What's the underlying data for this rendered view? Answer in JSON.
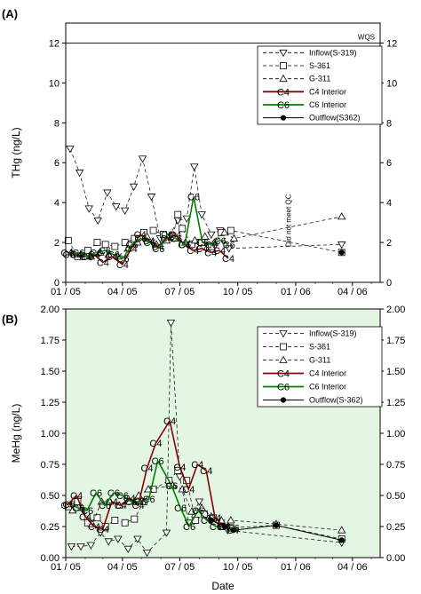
{
  "colors": {
    "panel_a_bg": "#ffffff",
    "panel_b_bg": "#e3f5e3",
    "inflow": "#000000",
    "s361": "#000000",
    "g311": "#000000",
    "c4": "#8b0000",
    "c6": "#008000",
    "outflow": "#000000"
  },
  "chart_data": [
    {
      "type": "line",
      "panel_label": "(A)",
      "ylabel": "THg (ng/L)",
      "xlabel": "",
      "x_axis": "date",
      "xlim": [
        "2005-01-01",
        "2006-05-15"
      ],
      "ylim": [
        0,
        13
      ],
      "yticks": [
        0,
        2,
        4,
        6,
        8,
        10,
        12
      ],
      "xtick_labels": [
        "01 / 05",
        "04 / 05",
        "07 / 05",
        "10 / 05",
        "01 / 06",
        "04 / 06"
      ],
      "grid": false,
      "legend_position": "top-right",
      "reference_line": {
        "y": 12,
        "label": "WQS"
      },
      "annotations": [
        {
          "text": "Did not meet QC",
          "x": "2005-12-24",
          "y": 3.1,
          "rotation": -90
        }
      ],
      "series": [
        {
          "name": "Inflow(S-319)",
          "marker": "triangle-down",
          "style": "dashed",
          "points": [
            [
              "2005-01-08",
              6.7
            ],
            [
              "2005-01-23",
              5.5
            ],
            [
              "2005-02-07",
              3.7
            ],
            [
              "2005-02-21",
              3.1
            ],
            [
              "2005-03-08",
              4.5
            ],
            [
              "2005-03-22",
              3.8
            ],
            [
              "2005-04-05",
              3.6
            ],
            [
              "2005-04-19",
              4.8
            ],
            [
              "2005-05-03",
              6.2
            ],
            [
              "2005-05-17",
              4.3
            ],
            [
              "2005-05-31",
              2.2
            ],
            [
              "2005-06-14",
              2.3
            ],
            [
              "2005-06-28",
              3.1
            ],
            [
              "2005-07-12",
              3.2
            ],
            [
              "2005-07-24",
              5.8
            ],
            [
              "2005-08-05",
              3.4
            ],
            [
              "2005-08-20",
              2.4
            ],
            [
              "2005-09-03",
              2.6
            ],
            [
              "2005-09-17",
              1.7
            ],
            [
              "2006-03-15",
              1.9
            ]
          ]
        },
        {
          "name": "S-361",
          "marker": "square-open",
          "style": "dashed",
          "points": [
            [
              "2005-01-05",
              2.1
            ],
            [
              "2005-01-20",
              1.3
            ],
            [
              "2005-02-05",
              1.6
            ],
            [
              "2005-02-20",
              2.0
            ],
            [
              "2005-03-05",
              1.9
            ],
            [
              "2005-03-20",
              1.8
            ],
            [
              "2005-04-05",
              2.0
            ],
            [
              "2005-04-20",
              2.2
            ],
            [
              "2005-05-05",
              2.5
            ],
            [
              "2005-05-20",
              2.6
            ],
            [
              "2005-06-05",
              2.4
            ],
            [
              "2005-06-20",
              2.3
            ],
            [
              "2005-06-28",
              3.4
            ],
            [
              "2005-07-05",
              2.7
            ],
            [
              "2005-07-20",
              1.9
            ],
            [
              "2005-08-05",
              2.0
            ],
            [
              "2005-08-20",
              1.8
            ],
            [
              "2005-09-05",
              2.5
            ],
            [
              "2005-09-20",
              2.6
            ],
            [
              "2006-03-15",
              1.5
            ]
          ]
        },
        {
          "name": "G-311",
          "marker": "triangle-up",
          "style": "dashed",
          "points": [
            [
              "2005-01-10",
              1.5
            ],
            [
              "2005-01-25",
              1.4
            ],
            [
              "2005-02-10",
              1.3
            ],
            [
              "2005-02-25",
              1.5
            ],
            [
              "2005-03-10",
              1.4
            ],
            [
              "2005-03-25",
              1.3
            ],
            [
              "2005-04-10",
              1.7
            ],
            [
              "2005-04-25",
              2.0
            ],
            [
              "2005-05-10",
              2.3
            ],
            [
              "2005-05-25",
              1.9
            ],
            [
              "2005-06-10",
              2.1
            ],
            [
              "2005-06-25",
              2.2
            ],
            [
              "2005-07-10",
              2.0
            ],
            [
              "2005-07-25",
              2.1
            ],
            [
              "2005-08-10",
              2.3
            ],
            [
              "2005-08-25",
              2.0
            ],
            [
              "2005-09-10",
              2.5
            ],
            [
              "2005-09-25",
              2.2
            ],
            [
              "2006-03-15",
              3.3
            ]
          ]
        },
        {
          "name": "C4 Interior",
          "marker": "label",
          "marker_text": "C4",
          "style": "solid",
          "points": [
            [
              "2005-01-03",
              1.5
            ],
            [
              "2005-01-18",
              1.4
            ],
            [
              "2005-02-01",
              1.3
            ],
            [
              "2005-02-15",
              1.4
            ],
            [
              "2005-03-01",
              1.0
            ],
            [
              "2005-03-15",
              1.3
            ],
            [
              "2005-04-01",
              0.9
            ],
            [
              "2005-04-15",
              1.7
            ],
            [
              "2005-04-29",
              2.4
            ],
            [
              "2005-05-13",
              2.1
            ],
            [
              "2005-05-27",
              1.8
            ],
            [
              "2005-06-10",
              2.2
            ],
            [
              "2005-06-24",
              2.4
            ],
            [
              "2005-07-08",
              1.9
            ],
            [
              "2005-07-22",
              1.6
            ],
            [
              "2005-08-05",
              1.7
            ],
            [
              "2005-08-19",
              1.5
            ],
            [
              "2005-09-02",
              1.6
            ],
            [
              "2005-09-16",
              1.2
            ]
          ]
        },
        {
          "name": "C6 Interior",
          "marker": "label",
          "marker_text": "C6",
          "style": "solid",
          "points": [
            [
              "2005-01-06",
              1.4
            ],
            [
              "2005-01-21",
              1.5
            ],
            [
              "2005-02-04",
              1.3
            ],
            [
              "2005-02-18",
              1.5
            ],
            [
              "2005-03-04",
              1.6
            ],
            [
              "2005-03-18",
              1.4
            ],
            [
              "2005-04-02",
              1.2
            ],
            [
              "2005-04-16",
              1.9
            ],
            [
              "2005-04-30",
              2.2
            ],
            [
              "2005-05-14",
              2.0
            ],
            [
              "2005-05-28",
              1.7
            ],
            [
              "2005-06-11",
              2.4
            ],
            [
              "2005-06-25",
              2.2
            ],
            [
              "2005-07-09",
              1.9
            ],
            [
              "2005-07-23",
              4.3
            ],
            [
              "2005-08-06",
              2.0
            ],
            [
              "2005-08-20",
              1.9
            ],
            [
              "2005-09-03",
              2.1
            ],
            [
              "2005-09-17",
              1.9
            ]
          ]
        },
        {
          "name": "Outflow(S362)",
          "marker": "dot",
          "style": "solid",
          "points": [
            [
              "2006-03-15",
              1.5
            ]
          ]
        }
      ]
    },
    {
      "type": "line",
      "panel_label": "(B)",
      "ylabel": "MeHg (ng/L)",
      "xlabel": "Date",
      "x_axis": "date",
      "xlim": [
        "2005-01-01",
        "2006-05-15"
      ],
      "ylim": [
        0,
        2.0
      ],
      "yticks": [
        0.0,
        0.25,
        0.5,
        0.75,
        1.0,
        1.25,
        1.5,
        1.75,
        2.0
      ],
      "yticklabels": [
        "0.00",
        "0.25",
        "0.50",
        "0.75",
        "1.00",
        "1.25",
        "1.50",
        "1.75",
        "2.00"
      ],
      "xtick_labels": [
        "01 / 05",
        "04 / 05",
        "07 / 05",
        "10 / 05",
        "01 / 06",
        "04 / 06"
      ],
      "grid": false,
      "legend_position": "top-right",
      "series": [
        {
          "name": "Inflow(S-319)",
          "marker": "triangle-down",
          "style": "dashed",
          "points": [
            [
              "2005-01-10",
              0.09
            ],
            [
              "2005-01-25",
              0.09
            ],
            [
              "2005-02-10",
              0.1
            ],
            [
              "2005-02-25",
              0.2
            ],
            [
              "2005-03-10",
              0.13
            ],
            [
              "2005-03-25",
              0.15
            ],
            [
              "2005-04-10",
              0.07
            ],
            [
              "2005-04-25",
              0.15
            ],
            [
              "2005-05-10",
              0.04
            ],
            [
              "2005-06-10",
              0.2
            ],
            [
              "2005-06-17",
              1.89
            ],
            [
              "2005-07-01",
              0.65
            ],
            [
              "2005-07-15",
              0.28
            ],
            [
              "2005-08-01",
              0.45
            ],
            [
              "2005-08-15",
              0.32
            ],
            [
              "2005-09-01",
              0.28
            ],
            [
              "2005-09-15",
              0.22
            ],
            [
              "2006-03-15",
              0.12
            ]
          ]
        },
        {
          "name": "S-361",
          "marker": "square-open",
          "style": "dashed",
          "points": [
            [
              "2005-01-05",
              0.41
            ],
            [
              "2005-01-20",
              0.45
            ],
            [
              "2005-02-05",
              0.28
            ],
            [
              "2005-02-20",
              0.32
            ],
            [
              "2005-03-05",
              0.25
            ],
            [
              "2005-03-20",
              0.3
            ],
            [
              "2005-04-05",
              0.28
            ],
            [
              "2005-04-20",
              0.31
            ],
            [
              "2005-05-05",
              0.45
            ],
            [
              "2005-05-20",
              0.55
            ],
            [
              "2005-06-14",
              0.62
            ],
            [
              "2005-06-28",
              0.7
            ],
            [
              "2005-07-12",
              0.62
            ],
            [
              "2005-07-26",
              0.3
            ],
            [
              "2005-08-09",
              0.35
            ],
            [
              "2005-08-23",
              0.32
            ],
            [
              "2005-09-06",
              0.25
            ],
            [
              "2005-09-20",
              0.24
            ],
            [
              "2005-12-01",
              0.26
            ],
            [
              "2006-03-15",
              0.15
            ]
          ]
        },
        {
          "name": "G-311",
          "marker": "triangle-up",
          "style": "dashed",
          "points": [
            [
              "2005-01-12",
              0.38
            ],
            [
              "2005-01-27",
              0.4
            ],
            [
              "2005-02-12",
              0.27
            ],
            [
              "2005-02-27",
              0.45
            ],
            [
              "2005-03-12",
              0.45
            ],
            [
              "2005-03-27",
              0.42
            ],
            [
              "2005-04-12",
              0.45
            ],
            [
              "2005-04-27",
              0.5
            ],
            [
              "2005-05-12",
              0.55
            ],
            [
              "2005-06-20",
              0.58
            ],
            [
              "2005-07-05",
              0.55
            ],
            [
              "2005-07-20",
              0.37
            ],
            [
              "2005-08-05",
              0.4
            ],
            [
              "2005-08-20",
              0.33
            ],
            [
              "2005-09-05",
              0.3
            ],
            [
              "2005-09-20",
              0.3
            ],
            [
              "2005-12-01",
              0.27
            ],
            [
              "2006-03-15",
              0.22
            ]
          ]
        },
        {
          "name": "C4 Interior",
          "marker": "label",
          "marker_text": "C4",
          "style": "solid",
          "points": [
            [
              "2005-01-03",
              0.42
            ],
            [
              "2005-01-18",
              0.5
            ],
            [
              "2005-02-01",
              0.33
            ],
            [
              "2005-02-15",
              0.25
            ],
            [
              "2005-03-01",
              0.23
            ],
            [
              "2005-03-15",
              0.45
            ],
            [
              "2005-03-29",
              0.42
            ],
            [
              "2005-04-12",
              0.48
            ],
            [
              "2005-04-26",
              0.42
            ],
            [
              "2005-05-10",
              0.72
            ],
            [
              "2005-05-24",
              0.92
            ],
            [
              "2005-06-15",
              1.1
            ],
            [
              "2005-07-01",
              0.73
            ],
            [
              "2005-07-15",
              0.55
            ],
            [
              "2005-07-29",
              0.75
            ],
            [
              "2005-08-12",
              0.7
            ],
            [
              "2005-08-26",
              0.32
            ],
            [
              "2005-09-09",
              0.25
            ],
            [
              "2005-09-23",
              0.22
            ]
          ]
        },
        {
          "name": "C6 Interior",
          "marker": "label",
          "marker_text": "C6",
          "style": "solid",
          "points": [
            [
              "2005-01-06",
              0.43
            ],
            [
              "2005-01-21",
              0.4
            ],
            [
              "2005-02-04",
              0.38
            ],
            [
              "2005-02-18",
              0.52
            ],
            [
              "2005-03-04",
              0.42
            ],
            [
              "2005-03-18",
              0.52
            ],
            [
              "2005-04-01",
              0.5
            ],
            [
              "2005-04-15",
              0.45
            ],
            [
              "2005-04-29",
              0.45
            ],
            [
              "2005-05-13",
              0.47
            ],
            [
              "2005-05-27",
              0.78
            ],
            [
              "2005-06-18",
              0.58
            ],
            [
              "2005-07-02",
              0.4
            ],
            [
              "2005-07-16",
              0.25
            ],
            [
              "2005-07-30",
              0.38
            ],
            [
              "2005-08-13",
              0.3
            ],
            [
              "2005-08-27",
              0.25
            ],
            [
              "2005-09-10",
              0.25
            ],
            [
              "2005-09-24",
              0.24
            ]
          ]
        },
        {
          "name": "Outflow(S-362)",
          "marker": "dot",
          "style": "solid",
          "points": [
            [
              "2005-08-20",
              0.3
            ],
            [
              "2005-09-10",
              0.25
            ],
            [
              "2005-09-24",
              0.22
            ],
            [
              "2005-12-01",
              0.26
            ],
            [
              "2006-03-15",
              0.14
            ]
          ]
        }
      ]
    }
  ]
}
